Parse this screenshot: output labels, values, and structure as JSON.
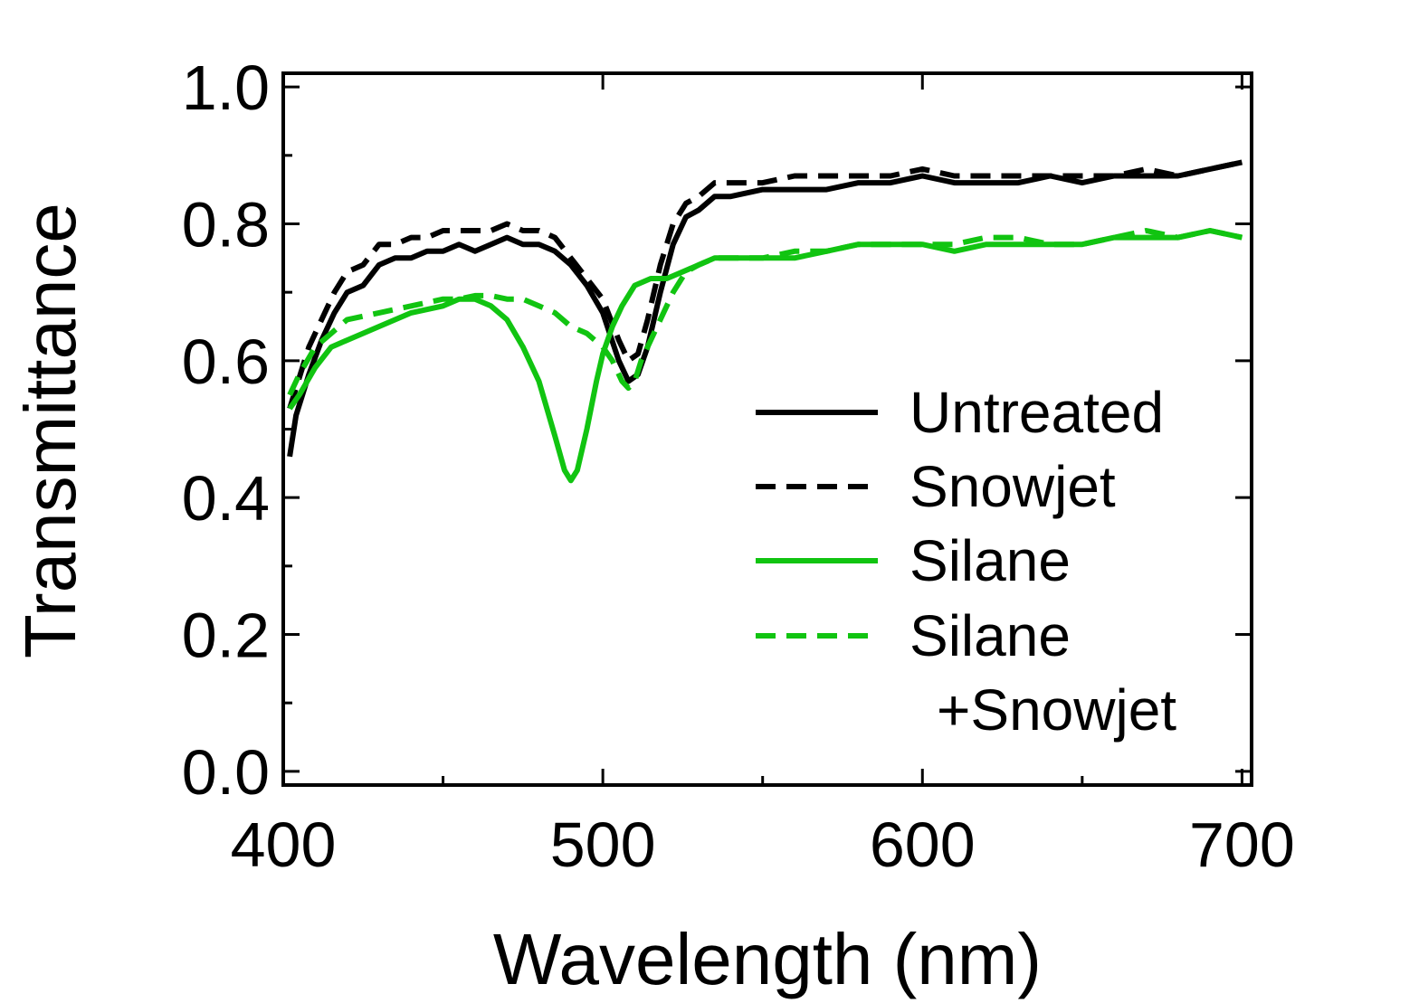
{
  "chart_data": {
    "type": "line",
    "xlabel": "Wavelength (nm)",
    "ylabel": "Transmittance",
    "xlim": [
      400,
      703
    ],
    "ylim": [
      -0.02,
      1.02
    ],
    "x_ticks": [
      400,
      500,
      600,
      700
    ],
    "x_tick_labels": [
      "400",
      "500",
      "600",
      "700"
    ],
    "x_minor_ticks": [
      450,
      550,
      650
    ],
    "y_ticks": [
      0.0,
      0.2,
      0.4,
      0.6,
      0.8,
      1.0
    ],
    "y_tick_labels": [
      "0.0",
      "0.2",
      "0.4",
      "0.6",
      "0.8",
      "1.0"
    ],
    "grid": false,
    "legend_position": "right",
    "series": [
      {
        "name": "Untreated",
        "color": "#000000",
        "dash": "solid",
        "x": [
          402,
          404,
          408,
          412,
          416,
          420,
          425,
          430,
          435,
          440,
          445,
          450,
          455,
          460,
          465,
          470,
          475,
          480,
          485,
          490,
          495,
          500,
          505,
          508,
          511,
          514,
          518,
          522,
          526,
          530,
          535,
          540,
          550,
          560,
          570,
          580,
          590,
          600,
          610,
          620,
          630,
          640,
          650,
          660,
          670,
          680,
          690,
          700
        ],
        "y": [
          0.46,
          0.52,
          0.58,
          0.63,
          0.67,
          0.7,
          0.71,
          0.74,
          0.75,
          0.75,
          0.76,
          0.76,
          0.77,
          0.76,
          0.77,
          0.78,
          0.77,
          0.77,
          0.76,
          0.74,
          0.71,
          0.67,
          0.6,
          0.57,
          0.58,
          0.62,
          0.7,
          0.77,
          0.81,
          0.82,
          0.84,
          0.84,
          0.85,
          0.85,
          0.85,
          0.86,
          0.86,
          0.87,
          0.86,
          0.86,
          0.86,
          0.87,
          0.86,
          0.87,
          0.87,
          0.87,
          0.88,
          0.89
        ]
      },
      {
        "name": "Snowjet",
        "color": "#000000",
        "dash": "dashed",
        "x": [
          402,
          404,
          408,
          412,
          416,
          420,
          425,
          430,
          435,
          440,
          445,
          450,
          455,
          460,
          465,
          470,
          475,
          480,
          485,
          490,
          495,
          500,
          505,
          508,
          511,
          514,
          518,
          522,
          526,
          530,
          535,
          540,
          550,
          560,
          570,
          580,
          590,
          600,
          610,
          620,
          630,
          640,
          650,
          660,
          670,
          680,
          690,
          700
        ],
        "y": [
          0.53,
          0.56,
          0.62,
          0.66,
          0.7,
          0.73,
          0.74,
          0.77,
          0.77,
          0.78,
          0.78,
          0.79,
          0.79,
          0.79,
          0.79,
          0.8,
          0.79,
          0.79,
          0.78,
          0.75,
          0.72,
          0.69,
          0.63,
          0.6,
          0.61,
          0.66,
          0.74,
          0.8,
          0.83,
          0.84,
          0.86,
          0.86,
          0.86,
          0.87,
          0.87,
          0.87,
          0.87,
          0.88,
          0.87,
          0.87,
          0.87,
          0.87,
          0.87,
          0.87,
          0.88,
          0.87,
          0.88,
          0.89
        ]
      },
      {
        "name": "Silane",
        "color": "#11c411",
        "dash": "solid",
        "x": [
          402,
          405,
          410,
          415,
          420,
          430,
          440,
          450,
          455,
          460,
          465,
          470,
          475,
          480,
          485,
          488,
          490,
          492,
          495,
          498,
          500,
          503,
          506,
          510,
          515,
          520,
          525,
          530,
          535,
          540,
          550,
          560,
          570,
          580,
          590,
          600,
          610,
          620,
          630,
          640,
          650,
          660,
          670,
          680,
          690,
          700
        ],
        "y": [
          0.53,
          0.55,
          0.59,
          0.62,
          0.63,
          0.65,
          0.67,
          0.68,
          0.69,
          0.69,
          0.68,
          0.66,
          0.62,
          0.57,
          0.49,
          0.44,
          0.425,
          0.44,
          0.5,
          0.57,
          0.61,
          0.65,
          0.68,
          0.71,
          0.72,
          0.72,
          0.73,
          0.74,
          0.75,
          0.75,
          0.75,
          0.75,
          0.76,
          0.77,
          0.77,
          0.77,
          0.76,
          0.77,
          0.77,
          0.77,
          0.77,
          0.78,
          0.78,
          0.78,
          0.79,
          0.78
        ]
      },
      {
        "name": "Silane +Snowjet",
        "color": "#11c411",
        "dash": "dashed",
        "x": [
          402,
          405,
          410,
          415,
          420,
          430,
          440,
          450,
          455,
          460,
          465,
          470,
          475,
          480,
          485,
          490,
          495,
          500,
          503,
          506,
          508,
          510,
          512,
          515,
          518,
          522,
          526,
          530,
          535,
          540,
          550,
          560,
          570,
          580,
          590,
          600,
          610,
          620,
          630,
          640,
          650,
          660,
          670,
          680,
          690,
          700
        ],
        "y": [
          0.55,
          0.58,
          0.62,
          0.64,
          0.66,
          0.67,
          0.68,
          0.69,
          0.69,
          0.695,
          0.695,
          0.69,
          0.69,
          0.68,
          0.67,
          0.65,
          0.64,
          0.62,
          0.6,
          0.57,
          0.56,
          0.57,
          0.6,
          0.63,
          0.66,
          0.7,
          0.73,
          0.74,
          0.75,
          0.75,
          0.75,
          0.76,
          0.76,
          0.77,
          0.77,
          0.77,
          0.77,
          0.78,
          0.78,
          0.77,
          0.77,
          0.78,
          0.79,
          0.78,
          0.79,
          0.78
        ]
      }
    ],
    "legend": [
      {
        "label": "Untreated"
      },
      {
        "label": "Snowjet"
      },
      {
        "label": "Silane"
      },
      {
        "label": "Silane"
      },
      {
        "label": "+Snowjet"
      }
    ]
  }
}
